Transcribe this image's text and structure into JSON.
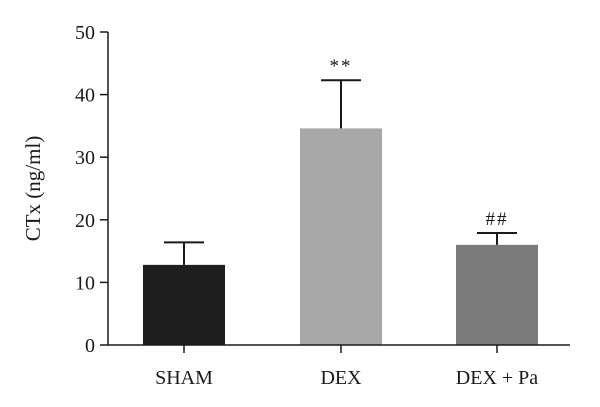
{
  "chart_data": {
    "type": "bar",
    "categories": [
      "SHAM",
      "DEX",
      "DEX + Pa"
    ],
    "values": [
      12.8,
      34.6,
      16.0
    ],
    "errors": [
      3.6,
      7.7,
      1.9
    ],
    "bar_colors": [
      "#1f1f1f",
      "#a8a8a8",
      "#7a7a7a"
    ],
    "significance": [
      "",
      "**",
      "##"
    ],
    "ylabel": "CTx (ng/ml)",
    "xlabel": "",
    "ylim": [
      0,
      50
    ],
    "yticks": [
      0,
      10,
      20,
      30,
      40,
      50
    ],
    "grid": false
  }
}
